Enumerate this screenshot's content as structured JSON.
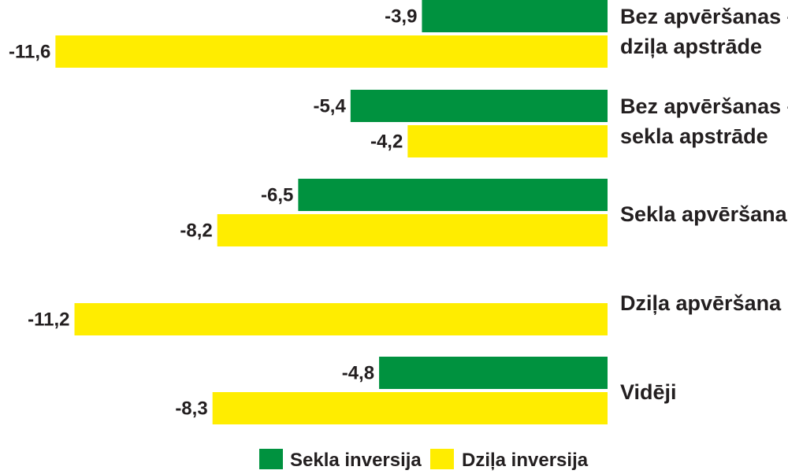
{
  "chart_data": {
    "type": "bar",
    "orientation": "horizontal",
    "categories": [
      [
        "Bez apvēršanas –",
        "dziļa apstrāde"
      ],
      [
        "Bez apvēršanas –",
        "sekla apstrāde"
      ],
      [
        "Sekla apvēršana"
      ],
      [
        "Dziļa apvēršana"
      ],
      [
        "Vidēji"
      ]
    ],
    "series": [
      {
        "name": "Sekla inversija",
        "color": "#00923f",
        "values": [
          -3.9,
          -5.4,
          -6.5,
          null,
          -4.8
        ],
        "labels": [
          "-3,9",
          "-5,4",
          "-6,5",
          "",
          "-4,8"
        ]
      },
      {
        "name": "Dziļa inversija",
        "color": "#ffed00",
        "values": [
          -11.6,
          -4.2,
          -8.2,
          -11.2,
          -8.3
        ],
        "labels": [
          "-11,6",
          "-4,2",
          "-8,2",
          "-11,2",
          "-8,3"
        ]
      }
    ],
    "xlim": [
      -12.5,
      0
    ],
    "grid": false,
    "legend": "bottom"
  }
}
